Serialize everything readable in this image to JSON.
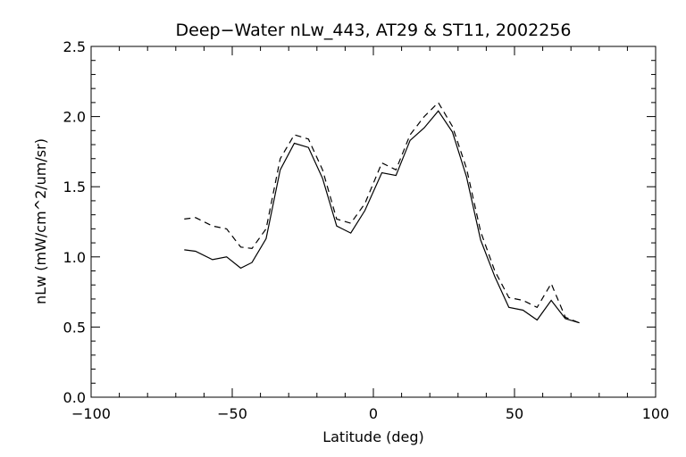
{
  "chart_data": {
    "type": "line",
    "title": "Deep−Water nLw_443, AT29 & ST11, 2002256",
    "xlabel": "Latitude (deg)",
    "ylabel": "nLw (mW/cm^2/um/sr)",
    "xlim": [
      -100,
      100
    ],
    "ylim": [
      0.0,
      2.5
    ],
    "xticks": [
      -100,
      -50,
      0,
      50,
      100
    ],
    "xtick_labels": [
      "−100",
      "−50",
      "0",
      "50",
      "100"
    ],
    "yticks": [
      0.0,
      0.5,
      1.0,
      1.5,
      2.0,
      2.5
    ],
    "ytick_labels": [
      "0.0",
      "0.5",
      "1.0",
      "1.5",
      "2.0",
      "2.5"
    ],
    "grid": false,
    "legend": "none",
    "series": [
      {
        "style": "solid",
        "color": "#000000",
        "x": [
          -67,
          -63,
          -57,
          -52,
          -47,
          -43,
          -38,
          -33,
          -28,
          -23,
          -18,
          -13,
          -8,
          -3,
          3,
          8,
          13,
          18,
          23,
          28,
          33,
          38,
          43,
          48,
          53,
          58,
          63,
          68,
          73
        ],
        "y": [
          1.05,
          1.04,
          0.98,
          1.0,
          0.92,
          0.96,
          1.13,
          1.62,
          1.81,
          1.78,
          1.56,
          1.22,
          1.17,
          1.33,
          1.6,
          1.58,
          1.83,
          1.92,
          2.04,
          1.89,
          1.57,
          1.12,
          0.86,
          0.64,
          0.62,
          0.55,
          0.69,
          0.56,
          0.53
        ]
      },
      {
        "style": "dashed",
        "color": "#000000",
        "x": [
          -67,
          -63,
          -57,
          -52,
          -47,
          -43,
          -38,
          -33,
          -28,
          -23,
          -18,
          -13,
          -8,
          -3,
          3,
          8,
          13,
          18,
          23,
          28,
          33,
          38,
          43,
          48,
          53,
          58,
          63,
          68,
          73
        ],
        "y": [
          1.27,
          1.28,
          1.22,
          1.2,
          1.07,
          1.06,
          1.2,
          1.7,
          1.87,
          1.84,
          1.62,
          1.27,
          1.24,
          1.38,
          1.67,
          1.62,
          1.87,
          2.0,
          2.1,
          1.93,
          1.63,
          1.18,
          0.9,
          0.71,
          0.69,
          0.64,
          0.81,
          0.57,
          0.53
        ]
      }
    ]
  }
}
